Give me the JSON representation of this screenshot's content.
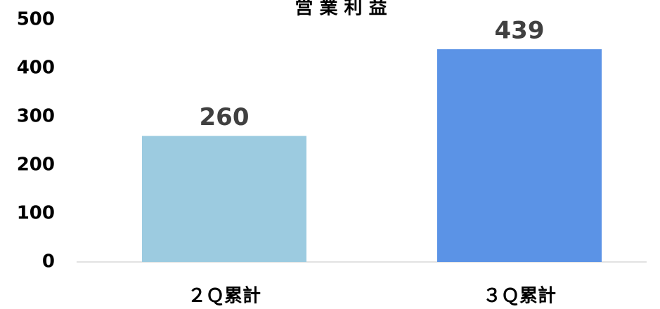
{
  "chart_data": {
    "type": "bar",
    "title": "営 業 利 益",
    "categories": [
      "２Ｑ累計",
      "３Ｑ累計"
    ],
    "values": [
      260,
      439
    ],
    "colors": [
      "#9ccbe0",
      "#5b93e6"
    ],
    "ylim": [
      0,
      500
    ],
    "yticks": [
      0,
      100,
      200,
      300,
      400,
      500
    ],
    "grid": false
  }
}
